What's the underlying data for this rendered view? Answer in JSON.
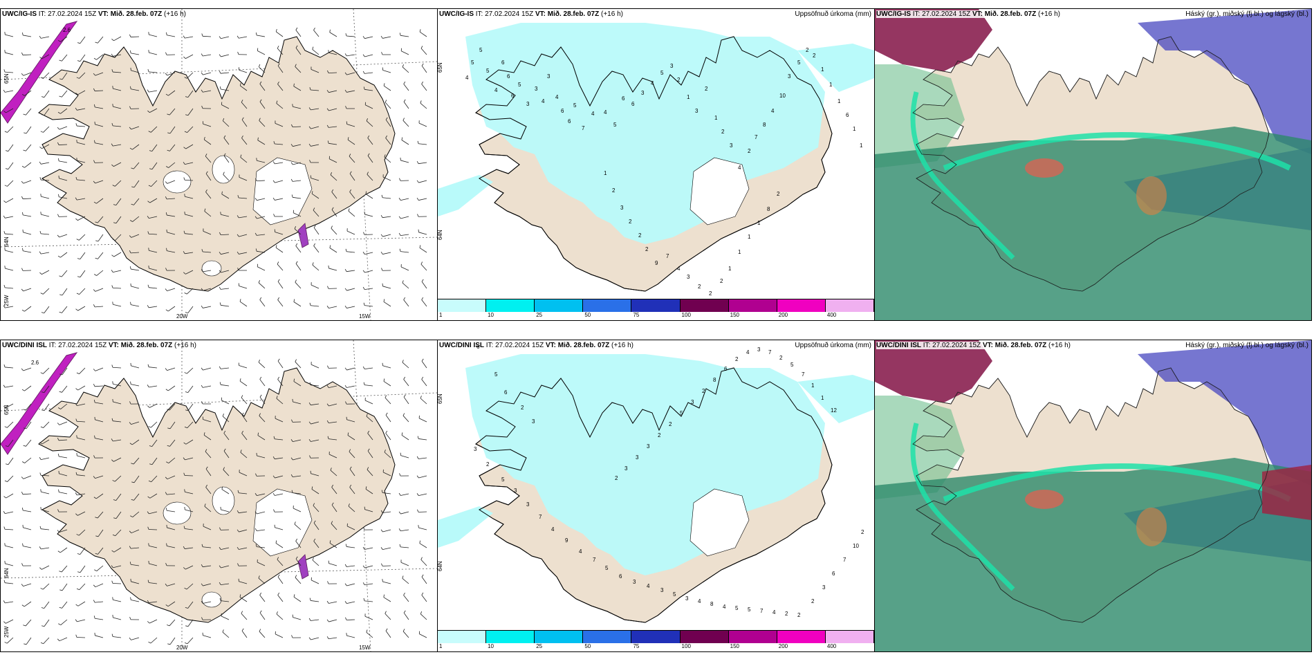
{
  "rows": [
    {
      "model": "UWC/IG-IS",
      "model_isl": "UWC/IG-IS",
      "it": "IT: 27.02.2024 15Z",
      "vt_label": "VT:",
      "vt_value": "Mið. 28.feb. 07Z",
      "lead": "(+16 h)"
    },
    {
      "model": "UWC/DINI ISL",
      "model_isl": "UWC/DINI ISL",
      "it": "IT: 27.02.2024 15Z",
      "vt_label": "VT:",
      "vt_value": "Mið. 28.feb. 07Z",
      "lead": "(+16 h)"
    }
  ],
  "precip_title": "Uppsöfnuð úrkoma (mm)",
  "cloud_title": "Háský (gr.), miðský (fj.bl.) og lágský (bl.)",
  "wind_axis": {
    "lon_labels": [
      "20W",
      "15W"
    ],
    "lat_labels": [
      "65N",
      "64N",
      "25W"
    ],
    "contour_value": "2.6"
  },
  "precip_axis_labels": [
    "65N",
    "64N"
  ],
  "colorbar": {
    "ticks": [
      "1",
      "10",
      "25",
      "50",
      "75",
      "100",
      "150",
      "200",
      "400"
    ],
    "colors": [
      "#c8fcfc",
      "#00f0f0",
      "#00c0f0",
      "#2a70e8",
      "#2030b8",
      "#700050",
      "#b00090",
      "#f000c0",
      "#f0b0f0"
    ]
  },
  "precip_values_top": [
    "5",
    "5",
    "4",
    "5",
    "4",
    "6",
    "6",
    "6",
    "5",
    "3",
    "3",
    "4",
    "3",
    "4",
    "6",
    "6",
    "5",
    "7",
    "4",
    "4",
    "5",
    "6",
    "6",
    "3",
    "4",
    "5",
    "3",
    "2",
    "1",
    "3",
    "2",
    "1",
    "2",
    "3",
    "4",
    "2",
    "7",
    "8",
    "4",
    "10",
    "3",
    "5",
    "2",
    "2",
    "1",
    "1",
    "1",
    "6",
    "1",
    "1",
    "1",
    "2",
    "3",
    "2",
    "2",
    "2",
    "9",
    "7",
    "4",
    "3",
    "2",
    "2",
    "2",
    "1",
    "1",
    "1",
    "1",
    "8",
    "2"
  ],
  "precip_values_bottom": [
    "6",
    "5",
    "6",
    "2",
    "3",
    "3",
    "2",
    "5",
    "3",
    "3",
    "7",
    "4",
    "9",
    "4",
    "7",
    "5",
    "6",
    "3",
    "4",
    "3",
    "5",
    "3",
    "4",
    "8",
    "4",
    "5",
    "5",
    "7",
    "4",
    "2",
    "2",
    "2",
    "3",
    "6",
    "7",
    "10",
    "2",
    "2",
    "3",
    "3",
    "3",
    "2",
    "2",
    "5",
    "3",
    "2",
    "8",
    "6",
    "2",
    "4",
    "3",
    "7",
    "2",
    "5",
    "7",
    "1",
    "1",
    "12"
  ],
  "colors": {
    "land": "#ede0cf",
    "precip_light": "#b9fafa",
    "cloud_high": "#4848c0",
    "cloud_mid": "#2d8a6a",
    "cloud_low": "#1fe0a8"
  }
}
